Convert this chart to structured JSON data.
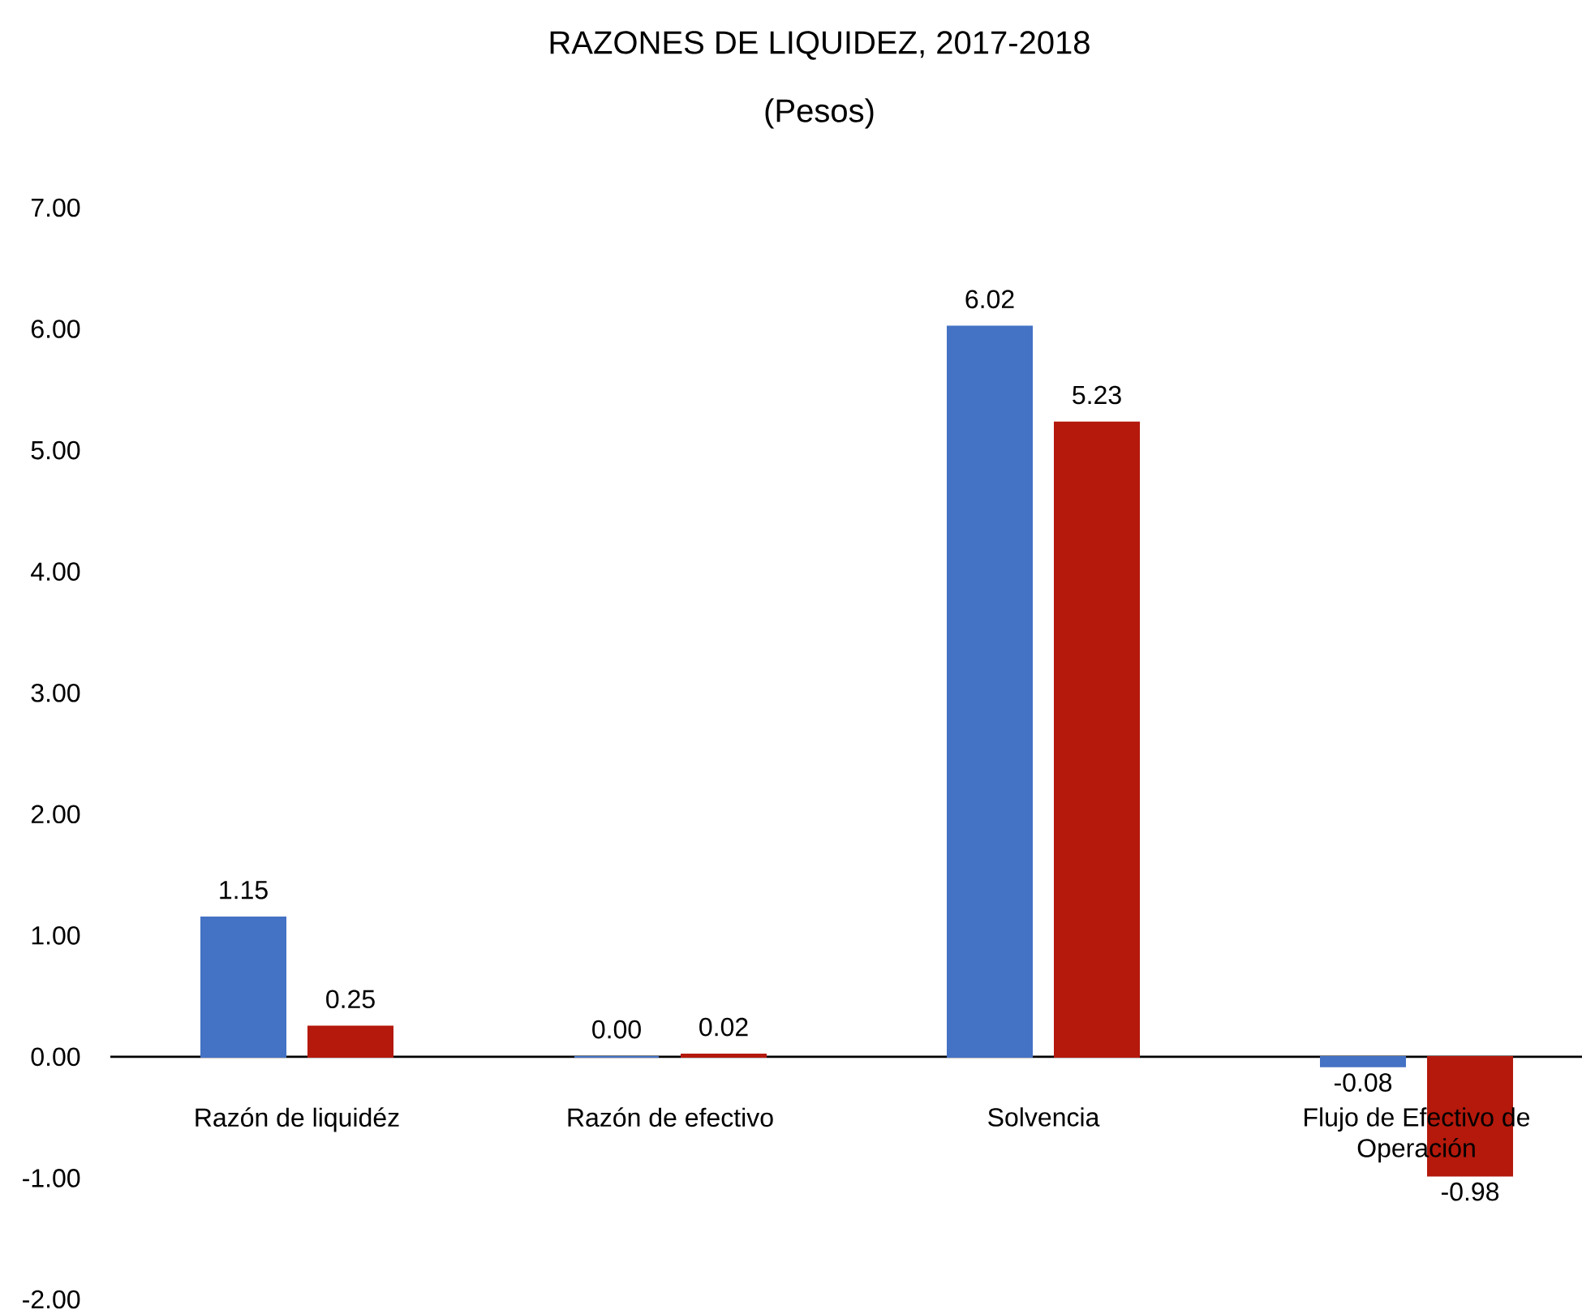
{
  "chart_data": {
    "type": "bar",
    "title": "RAZONES DE LIQUIDEZ, 2017-2018",
    "subtitle": "(Pesos)",
    "categories": [
      "Razón de liquidéz",
      "Razón de efectivo",
      "Solvencia",
      "Flujo de Efectivo de Operación"
    ],
    "series": [
      {
        "color": "#4472c4",
        "values": [
          1.15,
          0.0,
          6.02,
          -0.08
        ],
        "value_labels": [
          "1.15",
          "0.00",
          "6.02",
          "-0.08"
        ]
      },
      {
        "color": "#b4190c",
        "values": [
          0.25,
          0.02,
          5.23,
          -0.98
        ],
        "value_labels": [
          "0.25",
          "0.02",
          "5.23",
          "-0.98"
        ]
      }
    ],
    "ylim": [
      -2,
      7
    ],
    "yticks": [
      {
        "value": -2,
        "label": "-2.00"
      },
      {
        "value": -1,
        "label": "-1.00"
      },
      {
        "value": 0,
        "label": "0.00"
      },
      {
        "value": 1,
        "label": "1.00"
      },
      {
        "value": 2,
        "label": "2.00"
      },
      {
        "value": 3,
        "label": "3.00"
      },
      {
        "value": 4,
        "label": "4.00"
      },
      {
        "value": 5,
        "label": "5.00"
      },
      {
        "value": 6,
        "label": "6.00"
      },
      {
        "value": 7,
        "label": "7.00"
      }
    ]
  }
}
